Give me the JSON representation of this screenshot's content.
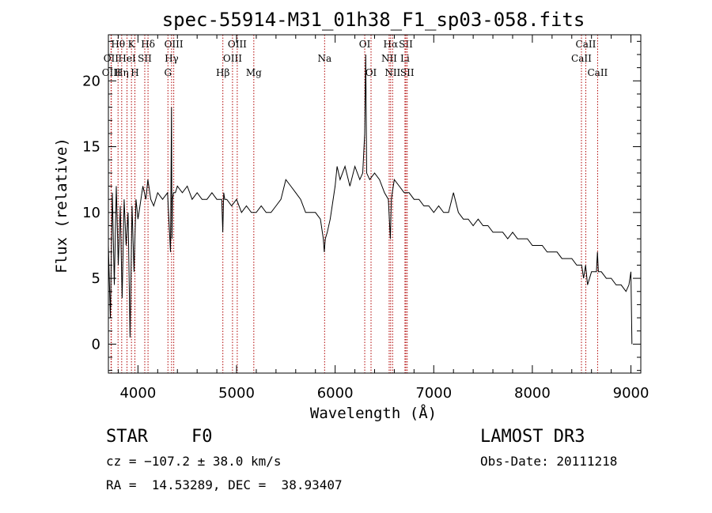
{
  "chart_data": {
    "type": "line",
    "title": "spec-55914-M31_01h38_F1_sp03-058.fits",
    "xlabel": "Wavelength (Å)",
    "ylabel": "Flux (relative)",
    "xlim": [
      3700,
      9100
    ],
    "ylim": [
      -2.2,
      23.5
    ],
    "xticks": [
      4000,
      5000,
      6000,
      7000,
      8000,
      9000
    ],
    "yticks": [
      0,
      5,
      10,
      15,
      20
    ],
    "grid": false,
    "series": [
      {
        "x": [
          3700,
          3720,
          3740,
          3760,
          3780,
          3800,
          3820,
          3840,
          3860,
          3880,
          3900,
          3920,
          3940,
          3960,
          3980,
          4000,
          4020,
          4050,
          4080,
          4100,
          4130,
          4160,
          4200,
          4250,
          4300,
          4330,
          4340,
          4345,
          4350,
          4360,
          4380,
          4400,
          4450,
          4500,
          4550,
          4600,
          4650,
          4700,
          4750,
          4800,
          4850,
          4860,
          4870,
          4880,
          4900,
          4950,
          5000,
          5050,
          5100,
          5150,
          5200,
          5250,
          5300,
          5350,
          5400,
          5450,
          5500,
          5550,
          5600,
          5650,
          5700,
          5750,
          5800,
          5850,
          5880,
          5890,
          5900,
          5920,
          5950,
          6000,
          6020,
          6050,
          6100,
          6150,
          6200,
          6250,
          6280,
          6300,
          6310,
          6320,
          6350,
          6400,
          6450,
          6500,
          6540,
          6560,
          6570,
          6580,
          6600,
          6650,
          6700,
          6750,
          6800,
          6850,
          6900,
          6950,
          7000,
          7050,
          7100,
          7150,
          7200,
          7250,
          7300,
          7350,
          7400,
          7450,
          7500,
          7550,
          7600,
          7650,
          7700,
          7750,
          7800,
          7850,
          7900,
          7950,
          8000,
          8050,
          8100,
          8150,
          8200,
          8250,
          8300,
          8350,
          8400,
          8450,
          8500,
          8520,
          8540,
          8560,
          8600,
          8650,
          8660,
          8670,
          8700,
          8750,
          8800,
          8850,
          8900,
          8950,
          8980,
          9000,
          9010
        ],
        "values": [
          7.5,
          2.0,
          11.5,
          4.5,
          12.0,
          6.0,
          10.5,
          3.5,
          11.0,
          7.5,
          10.0,
          0.5,
          10.5,
          5.5,
          11.0,
          9.5,
          10.5,
          12.0,
          11.0,
          12.5,
          11.0,
          10.5,
          11.5,
          11.0,
          11.5,
          7.0,
          18.0,
          8.0,
          11.0,
          11.5,
          11.5,
          12.0,
          11.5,
          12.0,
          11.0,
          11.5,
          11.0,
          11.0,
          11.5,
          11.0,
          11.0,
          8.5,
          11.5,
          11.0,
          11.0,
          10.5,
          11.0,
          10.0,
          10.5,
          10.0,
          10.0,
          10.5,
          10.0,
          10.0,
          10.5,
          11.0,
          12.5,
          12.0,
          11.5,
          11.0,
          10.0,
          10.0,
          10.0,
          9.5,
          8.0,
          7.0,
          8.0,
          8.5,
          9.5,
          12.0,
          13.5,
          12.5,
          13.5,
          12.0,
          13.5,
          12.5,
          13.0,
          16.0,
          22.0,
          13.0,
          12.5,
          13.0,
          12.5,
          11.5,
          11.0,
          8.0,
          11.0,
          11.5,
          12.5,
          12.0,
          11.5,
          11.5,
          11.0,
          11.0,
          10.5,
          10.5,
          10.0,
          10.5,
          10.0,
          10.0,
          11.5,
          10.0,
          9.5,
          9.5,
          9.0,
          9.5,
          9.0,
          9.0,
          8.5,
          8.5,
          8.5,
          8.0,
          8.5,
          8.0,
          8.0,
          8.0,
          7.5,
          7.5,
          7.5,
          7.0,
          7.0,
          7.0,
          6.5,
          6.5,
          6.5,
          6.0,
          6.0,
          5.0,
          6.0,
          4.5,
          5.5,
          5.5,
          7.0,
          5.5,
          5.5,
          5.0,
          5.0,
          4.5,
          4.5,
          4.0,
          4.5,
          5.5,
          0.0
        ]
      }
    ],
    "line_markers": [
      {
        "label": "Hθ",
        "x": 3798,
        "row": 0
      },
      {
        "label": "OII",
        "x": 3727,
        "row": 1
      },
      {
        "label": "OIII",
        "x": 3730,
        "row": 2
      },
      {
        "label": "K",
        "x": 3934,
        "row": 0
      },
      {
        "label": "HeI",
        "x": 3889,
        "row": 1
      },
      {
        "label": "Hη",
        "x": 3835,
        "row": 2
      },
      {
        "label": "Hδ",
        "x": 4102,
        "row": 0
      },
      {
        "label": "SII",
        "x": 4069,
        "row": 1
      },
      {
        "label": "H",
        "x": 3969,
        "row": 2
      },
      {
        "label": "OIII",
        "x": 4363,
        "row": 0
      },
      {
        "label": "Hγ",
        "x": 4341,
        "row": 1
      },
      {
        "label": "G",
        "x": 4304,
        "row": 2
      },
      {
        "label": "OIII",
        "x": 5007,
        "row": 0
      },
      {
        "label": "OIII",
        "x": 4959,
        "row": 1
      },
      {
        "label": "Hβ",
        "x": 4861,
        "row": 2
      },
      {
        "label": "Mg",
        "x": 5175,
        "row": 2
      },
      {
        "label": "Na",
        "x": 5893,
        "row": 1
      },
      {
        "label": "OI",
        "x": 6300,
        "row": 0
      },
      {
        "label": "OI",
        "x": 6364,
        "row": 2
      },
      {
        "label": "Hα",
        "x": 6563,
        "row": 0
      },
      {
        "label": "SII",
        "x": 6717,
        "row": 0
      },
      {
        "label": "NII",
        "x": 6548,
        "row": 1
      },
      {
        "label": "Li",
        "x": 6708,
        "row": 1
      },
      {
        "label": "NII",
        "x": 6583,
        "row": 2
      },
      {
        "label": "SII",
        "x": 6731,
        "row": 2
      },
      {
        "label": "CaII",
        "x": 8542,
        "row": 0
      },
      {
        "label": "CaII",
        "x": 8498,
        "row": 1
      },
      {
        "label": "CaII",
        "x": 8662,
        "row": 2
      }
    ]
  },
  "info": {
    "class": "STAR",
    "subclass": "F0",
    "survey": "LAMOST DR3",
    "cz": "cz = −107.2 ± 38.0 km/s",
    "obs_date": "Obs-Date: 20111218",
    "coords": "RA =  14.53289, DEC =  38.93407"
  }
}
